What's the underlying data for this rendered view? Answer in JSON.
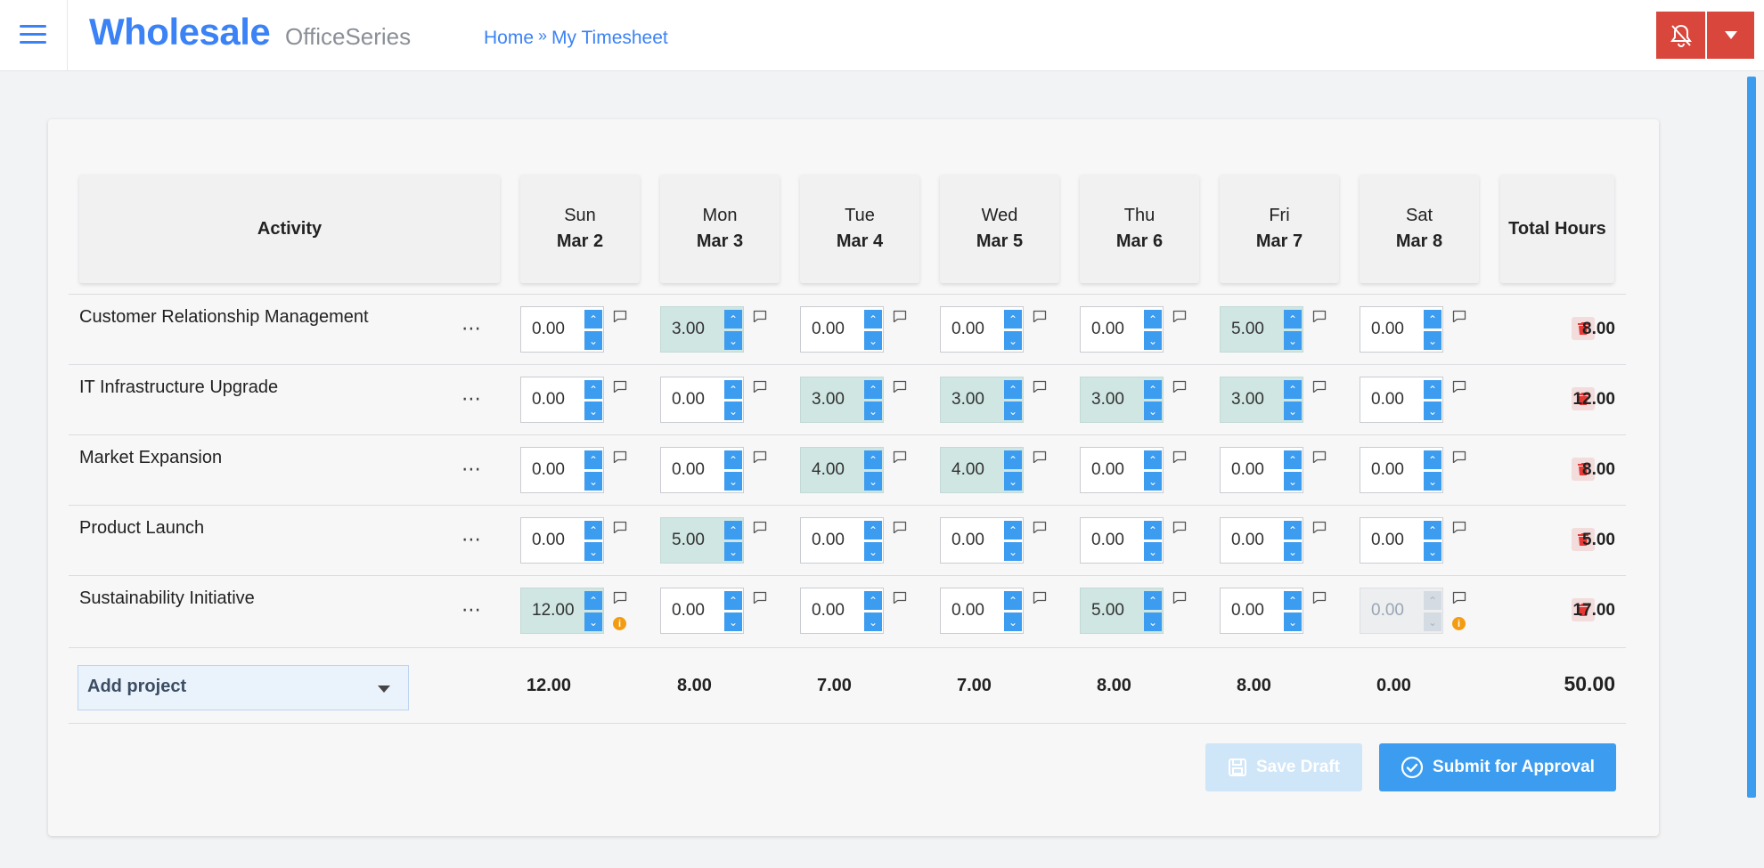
{
  "app": {
    "brand": "Wholesale",
    "suite": "OfficeSeries"
  },
  "breadcrumb": {
    "home": "Home",
    "separator": "»",
    "current": "My Timesheet"
  },
  "colors": {
    "accent": "#3b82f6",
    "alert": "#d9463b",
    "highlight": "#cfe6e2",
    "warning": "#f39c12"
  },
  "table": {
    "activity_header": "Activity",
    "total_header": "Total Hours",
    "days": [
      {
        "name": "Sun",
        "date": "Mar 2"
      },
      {
        "name": "Mon",
        "date": "Mar 3"
      },
      {
        "name": "Tue",
        "date": "Mar 4"
      },
      {
        "name": "Wed",
        "date": "Mar 5"
      },
      {
        "name": "Thu",
        "date": "Mar 6"
      },
      {
        "name": "Fri",
        "date": "Mar 7"
      },
      {
        "name": "Sat",
        "date": "Mar 8"
      }
    ],
    "rows": [
      {
        "activity": "Customer Relationship Management",
        "hours": [
          "0.00",
          "3.00",
          "0.00",
          "0.00",
          "0.00",
          "5.00",
          "0.00"
        ],
        "total": "8.00"
      },
      {
        "activity": "IT Infrastructure Upgrade",
        "hours": [
          "0.00",
          "0.00",
          "3.00",
          "3.00",
          "3.00",
          "3.00",
          "0.00"
        ],
        "total": "12.00"
      },
      {
        "activity": "Market Expansion",
        "hours": [
          "0.00",
          "0.00",
          "4.00",
          "4.00",
          "0.00",
          "0.00",
          "0.00"
        ],
        "total": "8.00"
      },
      {
        "activity": "Product Launch",
        "hours": [
          "0.00",
          "5.00",
          "0.00",
          "0.00",
          "0.00",
          "0.00",
          "0.00"
        ],
        "total": "5.00"
      },
      {
        "activity": "Sustainability Initiative",
        "hours": [
          "12.00",
          "0.00",
          "0.00",
          "0.00",
          "5.00",
          "0.00",
          "0.00"
        ],
        "total": "17.00"
      }
    ],
    "day_totals": [
      "12.00",
      "8.00",
      "7.00",
      "7.00",
      "8.00",
      "8.00",
      "0.00"
    ],
    "grand_total": "50.00"
  },
  "add_project": {
    "label": "Add project"
  },
  "actions": {
    "save_draft": "Save Draft",
    "submit": "Submit for Approval"
  }
}
